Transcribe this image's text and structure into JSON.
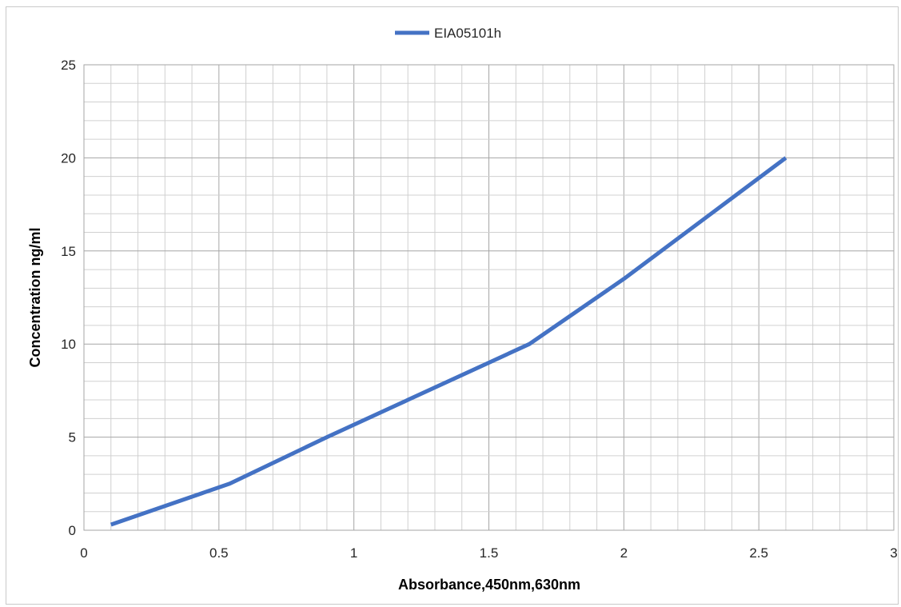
{
  "chart_data": {
    "type": "line",
    "xlabel": "Absorbance,450nm,630nm",
    "ylabel": "Concentration ng/ml",
    "xlim": [
      0,
      3
    ],
    "ylim": [
      0,
      25
    ],
    "x_ticks": [
      "0",
      "0.5",
      "1",
      "1.5",
      "2",
      "2.5",
      "3"
    ],
    "y_ticks": [
      "0",
      "5",
      "10",
      "15",
      "20",
      "25"
    ],
    "grid": true,
    "legend": "top-center",
    "series": [
      {
        "name": "EIA05101h",
        "color": "#4472c4",
        "points": [
          {
            "x": 0.1,
            "y": 0.3
          },
          {
            "x": 0.54,
            "y": 2.5
          },
          {
            "x": 0.9,
            "y": 5
          },
          {
            "x": 1.65,
            "y": 10
          },
          {
            "x": 2.0,
            "y": 13.5
          },
          {
            "x": 2.6,
            "y": 20
          }
        ]
      }
    ]
  }
}
